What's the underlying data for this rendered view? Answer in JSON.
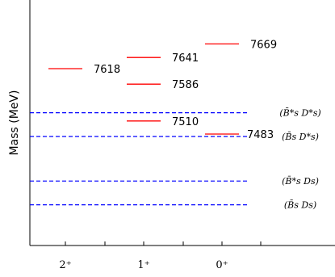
{
  "chart_data": {
    "type": "level-diagram",
    "ylabel": "Mass (MeV)",
    "categories": [
      "2⁺",
      "1⁺",
      "0⁺"
    ],
    "levels": [
      {
        "jp": "2+",
        "mass": 7618,
        "label": "7618"
      },
      {
        "jp": "1+",
        "mass": 7641,
        "label": "7641"
      },
      {
        "jp": "1+",
        "mass": 7586,
        "label": "7586"
      },
      {
        "jp": "1+",
        "mass": 7510,
        "label": "7510"
      },
      {
        "jp": "0+",
        "mass": 7669,
        "label": "7669"
      },
      {
        "jp": "0+",
        "mass": 7483,
        "label": "7483"
      }
    ],
    "thresholds": [
      {
        "mass": 7527,
        "label": "(B̄*s D*s)"
      },
      {
        "mass": 7478,
        "label": "(B̄s D*s)"
      },
      {
        "mass": 7386,
        "label": "(B̄*s Ds)"
      },
      {
        "mass": 7337,
        "label": "(B̄s Ds)"
      }
    ],
    "level_color": "#ff0000",
    "threshold_color": "#0000ff"
  }
}
